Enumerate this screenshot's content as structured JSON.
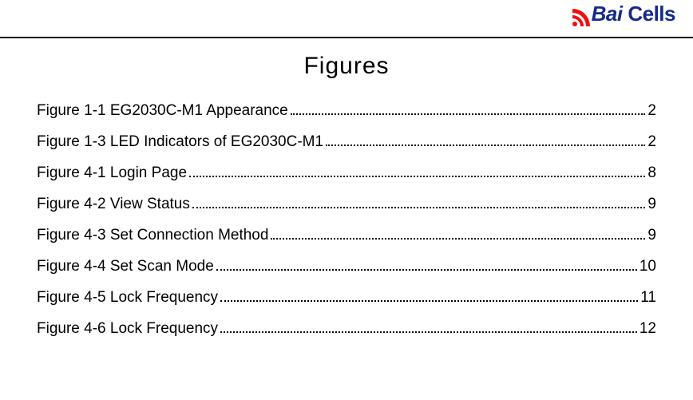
{
  "logo": {
    "brand_left": "Bai",
    "brand_right": "Cells"
  },
  "title": "Figures",
  "colors": {
    "rule": "#000000",
    "text": "#000000",
    "logo_blue": "#162a8a",
    "logo_red": "#ee1111",
    "background": "#ffffff"
  },
  "typography": {
    "title_fontsize": 30,
    "entry_fontsize": 19,
    "logo_fontsize": 26
  },
  "toc": [
    {
      "label": "Figure 1-1 EG2030C-M1 Appearance",
      "page": "2"
    },
    {
      "label": "Figure 1-3 LED Indicators of EG2030C-M1",
      "page": "2"
    },
    {
      "label": "Figure 4-1 Login Page",
      "page": "8"
    },
    {
      "label": "Figure 4-2 View Status",
      "page": "9"
    },
    {
      "label": "Figure 4-3 Set Connection Method",
      "page": "9"
    },
    {
      "label": "Figure 4-4 Set Scan Mode",
      "page": "10"
    },
    {
      "label": "Figure 4-5 Lock Frequency",
      "page": "11"
    },
    {
      "label": "Figure 4-6 Lock Frequency",
      "page": "12"
    }
  ]
}
